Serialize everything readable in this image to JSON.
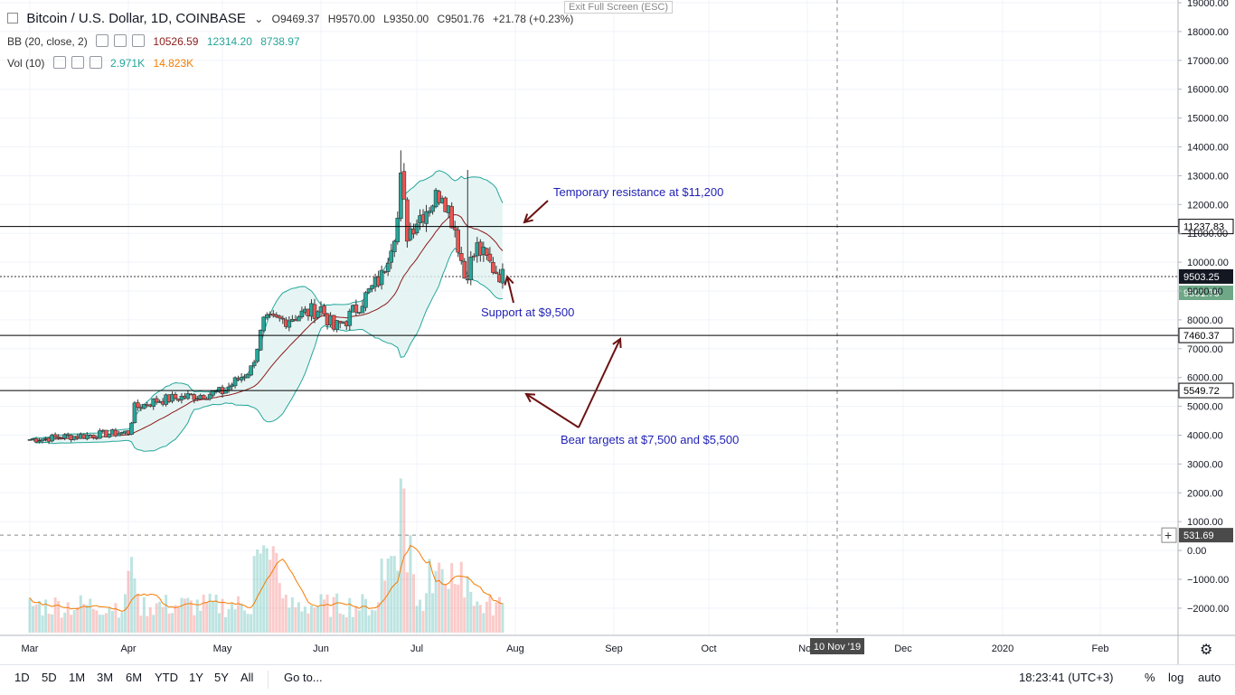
{
  "header": {
    "title": "Bitcoin / U.S. Dollar, 1D, COINBASE",
    "open": "O9469.37",
    "high": "H9570.00",
    "low": "L9350.00",
    "close": "C9501.76",
    "change": "+21.78 (+0.23%)",
    "exit_fullscreen": "Exit Full Screen (ESC)"
  },
  "indicators": {
    "bb": {
      "label": "BB (20, close, 2)",
      "middle": "10526.59",
      "upper": "12314.20",
      "lower": "8738.97"
    },
    "vol": {
      "label": "Vol (10)",
      "volume": "2.971K",
      "ma": "14.823K"
    }
  },
  "colors": {
    "up": "#26a69a",
    "down": "#ef5350",
    "annotation": "#1f1fb4",
    "arrow": "#6b1212",
    "bb_fill": "#e0f2f1",
    "bb_band": "#26a69a",
    "bb_basis": "#8b1a1a",
    "vol_ma": "#f57c00"
  },
  "chart_data": {
    "type": "candlestick",
    "title": "Bitcoin / U.S. Dollar, 1D, COINBASE",
    "ylim": [
      -2800,
      19300
    ],
    "y_ticks": [
      "19000.00",
      "18000.00",
      "17000.00",
      "16000.00",
      "15000.00",
      "14000.00",
      "13000.00",
      "12000.00",
      "11000.00",
      "10000.00",
      "9000.00",
      "8000.00",
      "7000.00",
      "6000.00",
      "5000.00",
      "4000.00",
      "3000.00",
      "2000.00",
      "1000.00",
      "0.00",
      "−1000.00",
      "−2000.00"
    ],
    "x_ticks": [
      "Mar",
      "Apr",
      "May",
      "Jun",
      "Jul",
      "Aug",
      "Sep",
      "Oct",
      "Nov",
      "Dec",
      "2020",
      "Feb"
    ],
    "price_series_key": [
      {
        "date": "Mar",
        "price": 3850
      },
      {
        "date": "Apr 1",
        "price": 4100
      },
      {
        "date": "Apr 3",
        "price": 4950
      },
      {
        "date": "Apr",
        "price": 5200
      },
      {
        "date": "May",
        "price": 5500
      },
      {
        "date": "May 10",
        "price": 6300
      },
      {
        "date": "May 14",
        "price": 7900
      },
      {
        "date": "May",
        "price": 8000
      },
      {
        "date": "Jun",
        "price": 8400
      },
      {
        "date": "Jun 5",
        "price": 7700
      },
      {
        "date": "Jun",
        "price": 8000
      },
      {
        "date": "Jun 20",
        "price": 9500
      },
      {
        "date": "Jun 25",
        "price": 11500
      },
      {
        "date": "Jun 26",
        "price": 12800
      },
      {
        "date": "Jun 28",
        "price": 11000
      },
      {
        "date": "Jul",
        "price": 11500
      },
      {
        "date": "Jul 9",
        "price": 12500
      },
      {
        "date": "Jul 13",
        "price": 11200
      },
      {
        "date": "Jul 16",
        "price": 9500
      },
      {
        "date": "Jul 20",
        "price": 10500
      },
      {
        "date": "Jul 25",
        "price": 9800
      },
      {
        "date": "Jul 28",
        "price": 9500
      }
    ],
    "horizontal_lines": [
      {
        "value": 11237.83,
        "label": "11237.83"
      },
      {
        "value": 7460.37,
        "label": "7460.37"
      },
      {
        "value": 5549.72,
        "label": "5549.72"
      }
    ],
    "price_labels": [
      {
        "value": 9503.25,
        "label": "9503.25"
      },
      {
        "value": 9501.76,
        "label": "9501.76"
      },
      {
        "value": 531.69,
        "label": "531.69"
      }
    ],
    "crosshair_date": "10 Nov '19",
    "annotations": [
      {
        "text": "Temporary resistance at $11,200"
      },
      {
        "text": "Support at $9,500"
      },
      {
        "text": "Bear targets at $7,500 and $5,500"
      }
    ]
  },
  "bottom": {
    "ranges": [
      "1D",
      "5D",
      "1M",
      "3M",
      "6M",
      "YTD",
      "1Y",
      "5Y",
      "All"
    ],
    "goto": "Go to...",
    "time": "18:23:41 (UTC+3)",
    "percent": "%",
    "log": "log",
    "auto": "auto"
  }
}
